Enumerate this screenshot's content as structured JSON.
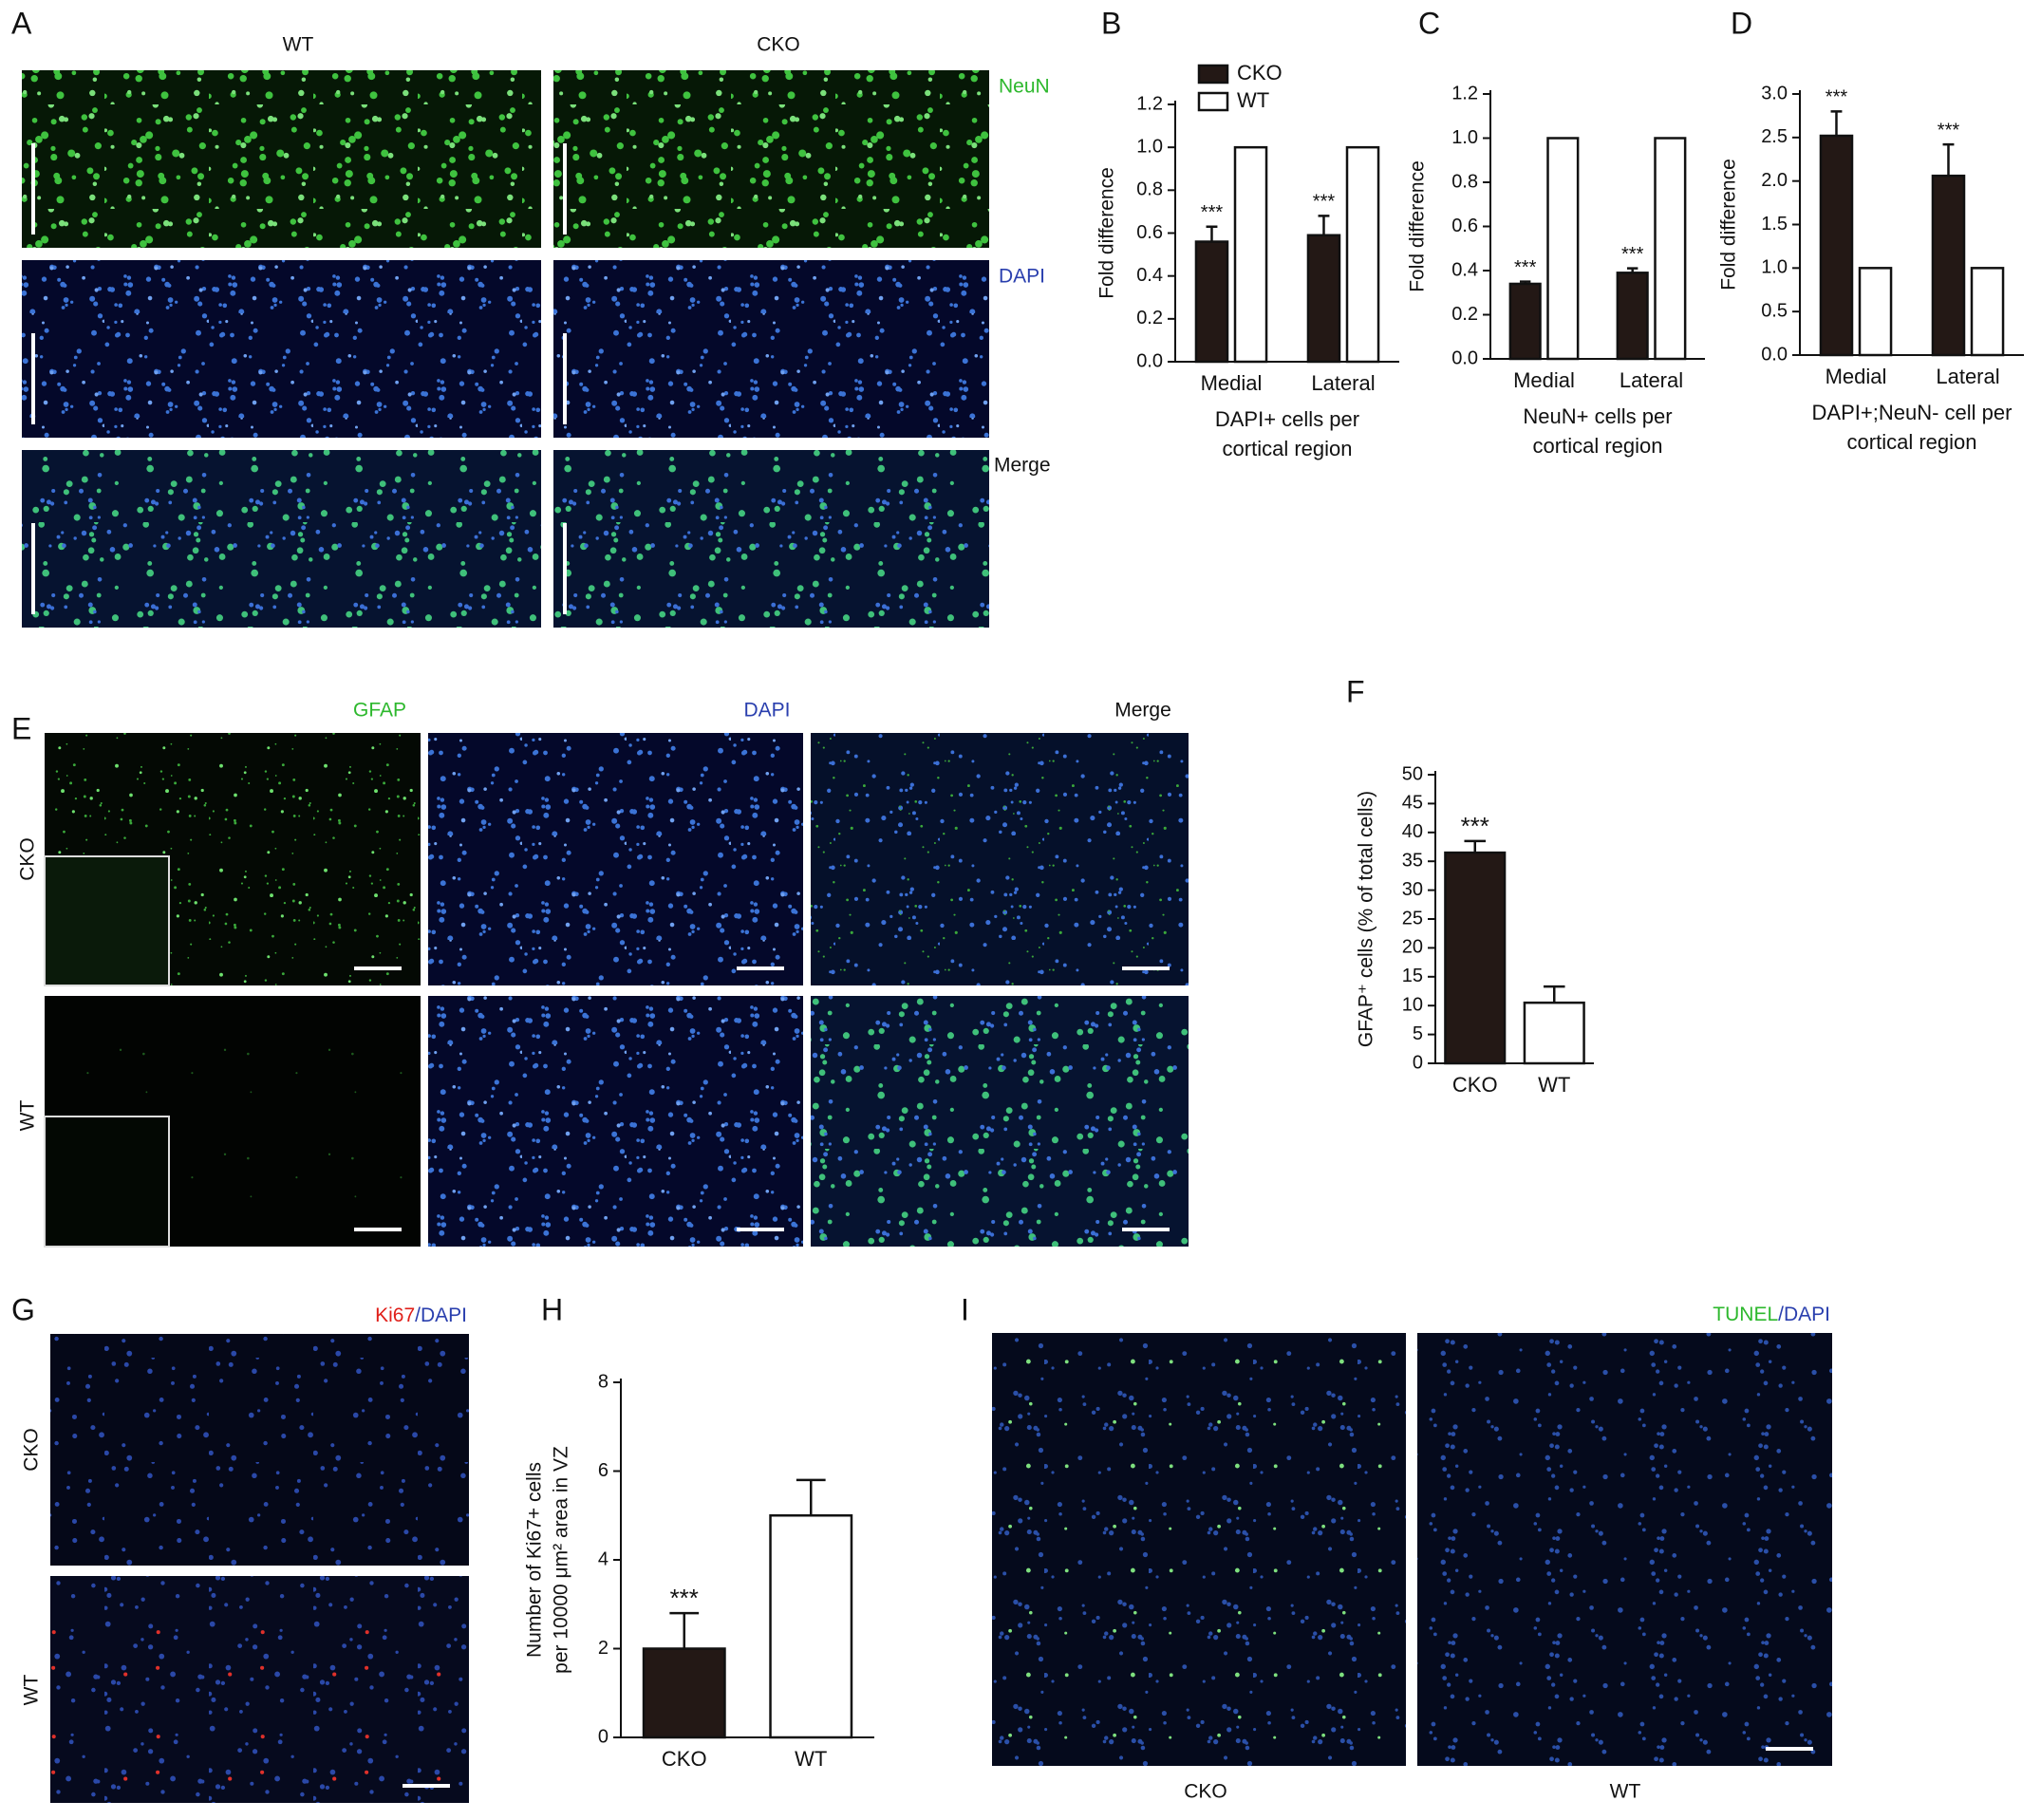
{
  "figure": {
    "panel_labels": [
      "A",
      "B",
      "C",
      "D",
      "E",
      "F",
      "G",
      "H",
      "I"
    ],
    "A": {
      "columns": [
        "WT",
        "CKO"
      ],
      "stains": [
        "NeuN",
        "DAPI",
        "Merge"
      ]
    },
    "E": {
      "stains": [
        "GFAP",
        "DAPI",
        "Merge"
      ],
      "rows": [
        "CKO",
        "WT"
      ]
    },
    "G": {
      "stain": [
        "Ki67",
        "/DAPI"
      ],
      "rows": [
        "CKO",
        "WT"
      ]
    },
    "I": {
      "stain": [
        "TUNEL",
        "/DAPI"
      ],
      "columns": [
        "CKO",
        "WT"
      ]
    }
  },
  "chart_data": [
    {
      "type": "bar",
      "categories": [
        "Medial",
        "Lateral"
      ],
      "series": [
        {
          "name": "CKO",
          "color": "#231815",
          "values": [
            0.56,
            0.59
          ],
          "errors": [
            0.07,
            0.09
          ]
        },
        {
          "name": "WT",
          "color": "#ffffff",
          "values": [
            1.0,
            1.0
          ]
        }
      ],
      "significance": [
        "***",
        "***"
      ],
      "ylim": [
        0,
        1.2
      ],
      "yticks": [
        {
          "value": 0,
          "label": "0.0"
        },
        0.2,
        0.4,
        0.6,
        0.8,
        {
          "value": 1,
          "label": "1.0"
        },
        1.2
      ],
      "ylabel": [
        "Fold difference"
      ],
      "xlabel": [
        "DAPI+ cells per",
        "cortical region"
      ],
      "legend": "top-left"
    },
    {
      "type": "bar",
      "categories": [
        "Medial",
        "Lateral"
      ],
      "series": [
        {
          "name": "CKO",
          "color": "#231815",
          "values": [
            0.34,
            0.39
          ],
          "errors": [
            0.01,
            0.02
          ]
        },
        {
          "name": "WT",
          "color": "#ffffff",
          "values": [
            1.0,
            1.0
          ]
        }
      ],
      "significance": [
        "***",
        "***"
      ],
      "ylim": [
        0,
        1.2
      ],
      "yticks": [
        {
          "value": 0,
          "label": "0.0"
        },
        0.2,
        0.4,
        0.6,
        0.8,
        {
          "value": 1,
          "label": "1.0"
        },
        1.2
      ],
      "ylabel": [
        "Fold difference"
      ],
      "xlabel": [
        "NeuN+ cells per",
        "cortical region"
      ]
    },
    {
      "type": "bar",
      "categories": [
        "Medial",
        "Lateral"
      ],
      "series": [
        {
          "name": "CKO",
          "color": "#231815",
          "values": [
            2.52,
            2.06
          ],
          "errors": [
            0.28,
            0.36
          ]
        },
        {
          "name": "WT",
          "color": "#ffffff",
          "values": [
            1.0,
            1.0
          ]
        }
      ],
      "significance": [
        "***",
        "***"
      ],
      "ylim": [
        0,
        3
      ],
      "yticks": [
        {
          "value": 0,
          "label": "0.0"
        },
        0.5,
        {
          "value": 1,
          "label": "1.0"
        },
        1.5,
        {
          "value": 2,
          "label": "2.0"
        },
        2.5,
        {
          "value": 3,
          "label": "3.0"
        }
      ],
      "ylabel": [
        "Fold difference"
      ],
      "xlabel": [
        "DAPI+;NeuN- cell per",
        "cortical region"
      ]
    },
    {
      "type": "bar",
      "categories": [
        "CKO",
        "WT"
      ],
      "values": [
        36.5,
        10.5
      ],
      "errors": [
        2.0,
        2.8
      ],
      "colors": [
        "#231815",
        "#ffffff"
      ],
      "significance": [
        "***"
      ],
      "ylim": [
        0,
        50
      ],
      "yticks": [
        0,
        5,
        10,
        15,
        20,
        25,
        30,
        35,
        40,
        45,
        50
      ],
      "ylabel": [
        "GFAP⁺ cells (% of total cells)"
      ]
    },
    {
      "type": "bar",
      "categories": [
        "CKO",
        "WT"
      ],
      "values": [
        2.0,
        5.0
      ],
      "errors": [
        0.8,
        0.8
      ],
      "colors": [
        "#231815",
        "#ffffff"
      ],
      "significance": [
        "***"
      ],
      "ylim": [
        0,
        8
      ],
      "yticks": [
        0,
        2,
        4,
        6,
        8
      ],
      "ylabel": [
        "Number of  Ki67+ cells",
        "per 10000 μm² area in VZ"
      ]
    }
  ]
}
